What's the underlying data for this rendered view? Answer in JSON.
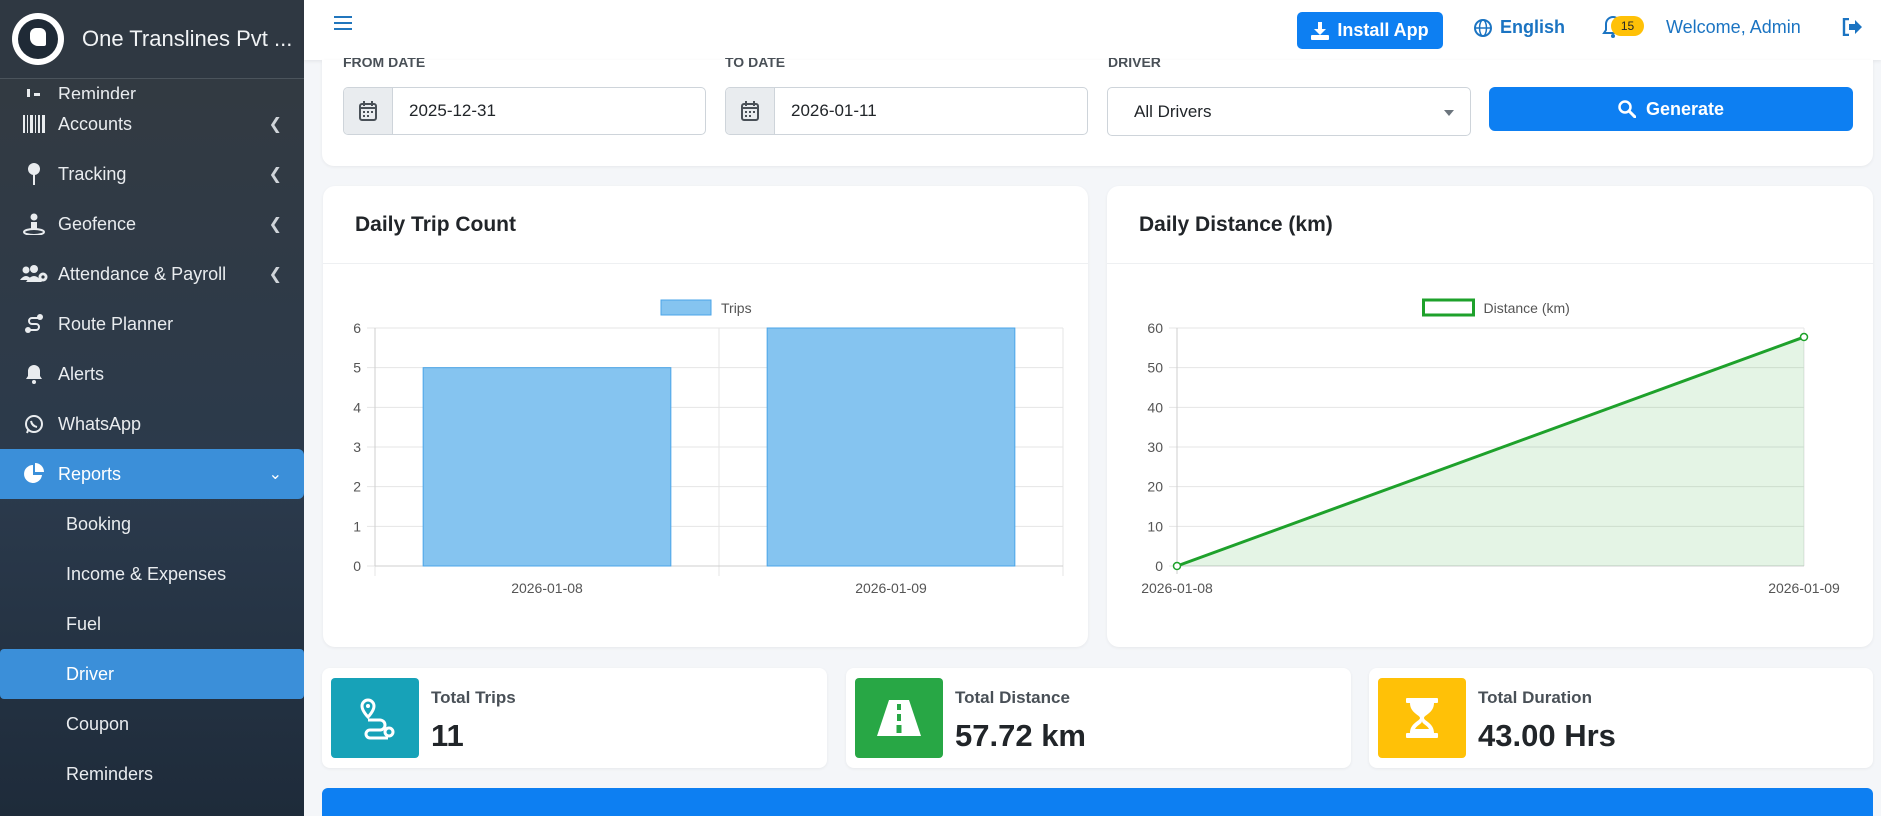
{
  "brand": {
    "name": "One Translines Pvt ..."
  },
  "sidebar": {
    "items": [
      {
        "label": "Reminder",
        "icon": "reminder-icon"
      },
      {
        "label": "Accounts",
        "icon": "barcode-icon"
      },
      {
        "label": "Tracking",
        "icon": "map-pin-icon"
      },
      {
        "label": "Geofence",
        "icon": "geofence-icon"
      },
      {
        "label": "Attendance & Payroll",
        "icon": "users-cog-icon"
      },
      {
        "label": "Route Planner",
        "icon": "route-icon"
      },
      {
        "label": "Alerts",
        "icon": "bell-icon"
      },
      {
        "label": "WhatsApp",
        "icon": "whatsapp-icon"
      },
      {
        "label": "Reports",
        "icon": "pie-chart-icon"
      }
    ],
    "subitems": [
      "Booking",
      "Income & Expenses",
      "Fuel",
      "Driver",
      "Coupon",
      "Reminders"
    ]
  },
  "topbar": {
    "install_label": "Install App",
    "language": "English",
    "notification_count": "15",
    "welcome": "Welcome, Admin"
  },
  "filters": {
    "from_label": "FROM DATE",
    "from_value": "2025-12-31",
    "to_label": "TO DATE",
    "to_value": "2026-01-11",
    "driver_label": "DRIVER",
    "driver_value": "All Drivers",
    "generate_label": "Generate"
  },
  "charts": {
    "trips_title": "Daily Trip Count",
    "distance_title": "Daily Distance (km)"
  },
  "chart_data": [
    {
      "type": "bar",
      "categories": [
        "2026-01-08",
        "2026-01-09"
      ],
      "series": [
        {
          "name": "Trips",
          "values": [
            5,
            6
          ],
          "color": "#85c4f0"
        }
      ],
      "ylim": [
        0,
        6
      ],
      "yticks": [
        0,
        1,
        2,
        3,
        4,
        5,
        6
      ],
      "legend": "top-center",
      "grid": true
    },
    {
      "type": "area",
      "x": [
        "2026-01-08",
        "2026-01-09"
      ],
      "series": [
        {
          "name": "Distance (km)",
          "values": [
            0,
            57.72
          ],
          "color": "#1ea12b"
        }
      ],
      "ylim": [
        0,
        60
      ],
      "yticks": [
        0,
        10,
        20,
        30,
        40,
        50,
        60
      ],
      "legend": "top-center",
      "grid": true
    }
  ],
  "stats": {
    "trips_label": "Total Trips",
    "trips_value": "11",
    "distance_label": "Total Distance",
    "distance_value": "57.72 km",
    "duration_label": "Total Duration",
    "duration_value": "43.00 Hrs"
  },
  "colors": {
    "primary": "#0d7ff2",
    "teal": "#17a2b8",
    "green": "#28a745",
    "yellow": "#ffc107"
  }
}
